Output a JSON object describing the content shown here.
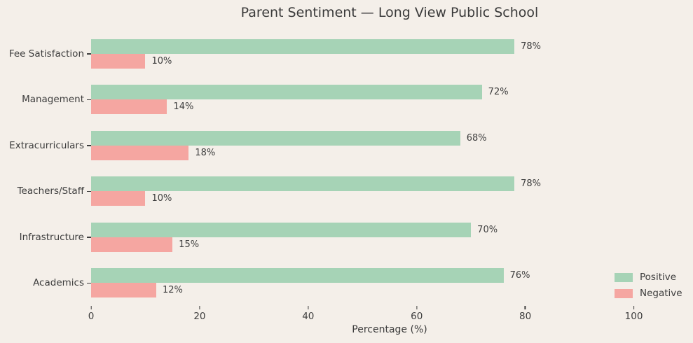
{
  "chart_data": {
    "type": "bar",
    "orientation": "horizontal",
    "title": "Parent Sentiment — Long View Public School",
    "xlabel": "Percentage (%)",
    "categories": [
      "Fee Satisfaction",
      "Management",
      "Extracurriculars",
      "Teachers/Staff",
      "Infrastructure",
      "Academics"
    ],
    "series": [
      {
        "name": "Positive",
        "color": "#a6d3b6",
        "values": [
          78,
          72,
          68,
          78,
          70,
          76
        ]
      },
      {
        "name": "Negative",
        "color": "#f5a6a1",
        "values": [
          10,
          14,
          18,
          10,
          15,
          12
        ]
      }
    ],
    "value_labels": {
      "Positive": [
        "78%",
        "72%",
        "68%",
        "78%",
        "70%",
        "76%"
      ],
      "Negative": [
        "10%",
        "14%",
        "18%",
        "10%",
        "15%",
        "12%"
      ]
    },
    "xticks": [
      "0",
      "20",
      "40",
      "60",
      "80",
      "100"
    ],
    "xtick_values": [
      0,
      20,
      40,
      60,
      80,
      100
    ],
    "xlim": [
      0,
      110
    ],
    "grid": false,
    "legend_position": "lower right",
    "legend_entries": [
      "Positive",
      "Negative"
    ],
    "colors": {
      "background": "#f4efe9",
      "positive": "#a6d3b6",
      "negative": "#f5a6a1",
      "text": "#3d3d3d"
    }
  }
}
